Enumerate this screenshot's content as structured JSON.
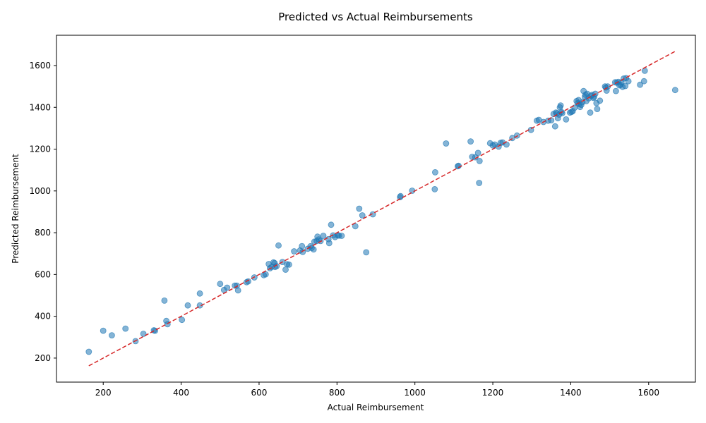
{
  "chart_data": {
    "type": "scatter",
    "title": "Predicted vs Actual Reimbursements",
    "xlabel": "Actual Reimbursement",
    "ylabel": "Predicted Reimbursement",
    "xlim": [
      80,
      1720
    ],
    "ylim": [
      85,
      1745
    ],
    "xticks": [
      200,
      400,
      600,
      800,
      1000,
      1200,
      1400,
      1600
    ],
    "yticks": [
      200,
      400,
      600,
      800,
      1000,
      1200,
      1400,
      1600
    ],
    "grid": false,
    "point_color": "#1f77b4",
    "reference_line": {
      "style": "dashed",
      "color": "#d62728",
      "from": [
        163,
        163
      ],
      "to": [
        1668,
        1668
      ]
    },
    "points": [
      [
        163,
        230
      ],
      [
        200,
        331
      ],
      [
        222,
        309
      ],
      [
        257,
        341
      ],
      [
        283,
        281
      ],
      [
        303,
        316
      ],
      [
        330,
        333
      ],
      [
        333,
        331
      ],
      [
        357,
        475
      ],
      [
        362,
        378
      ],
      [
        365,
        362
      ],
      [
        402,
        383
      ],
      [
        417,
        452
      ],
      [
        448,
        452
      ],
      [
        448,
        509
      ],
      [
        500,
        555
      ],
      [
        510,
        526
      ],
      [
        518,
        537
      ],
      [
        538,
        547
      ],
      [
        543,
        547
      ],
      [
        546,
        524
      ],
      [
        568,
        563
      ],
      [
        572,
        567
      ],
      [
        588,
        586
      ],
      [
        612,
        597
      ],
      [
        617,
        601
      ],
      [
        625,
        650
      ],
      [
        628,
        630
      ],
      [
        632,
        636
      ],
      [
        637,
        658
      ],
      [
        640,
        655
      ],
      [
        641,
        636
      ],
      [
        645,
        640
      ],
      [
        650,
        739
      ],
      [
        660,
        660
      ],
      [
        668,
        623
      ],
      [
        672,
        649
      ],
      [
        677,
        647
      ],
      [
        690,
        711
      ],
      [
        705,
        715
      ],
      [
        710,
        736
      ],
      [
        712,
        708
      ],
      [
        725,
        723
      ],
      [
        732,
        735
      ],
      [
        735,
        727
      ],
      [
        740,
        720
      ],
      [
        742,
        757
      ],
      [
        748,
        760
      ],
      [
        750,
        781
      ],
      [
        753,
        768
      ],
      [
        758,
        760
      ],
      [
        765,
        785
      ],
      [
        778,
        769
      ],
      [
        780,
        750
      ],
      [
        785,
        838
      ],
      [
        790,
        787
      ],
      [
        795,
        779
      ],
      [
        802,
        787
      ],
      [
        805,
        786
      ],
      [
        812,
        785
      ],
      [
        847,
        831
      ],
      [
        857,
        915
      ],
      [
        865,
        883
      ],
      [
        875,
        706
      ],
      [
        892,
        888
      ],
      [
        962,
        970
      ],
      [
        963,
        975
      ],
      [
        993,
        1001
      ],
      [
        1051,
        1008
      ],
      [
        1052,
        1089
      ],
      [
        1080,
        1227
      ],
      [
        1110,
        1118
      ],
      [
        1112,
        1120
      ],
      [
        1143,
        1237
      ],
      [
        1147,
        1163
      ],
      [
        1155,
        1161
      ],
      [
        1162,
        1182
      ],
      [
        1165,
        1038
      ],
      [
        1166,
        1143
      ],
      [
        1193,
        1228
      ],
      [
        1200,
        1218
      ],
      [
        1205,
        1222
      ],
      [
        1215,
        1212
      ],
      [
        1220,
        1230
      ],
      [
        1225,
        1232
      ],
      [
        1235,
        1222
      ],
      [
        1250,
        1253
      ],
      [
        1262,
        1265
      ],
      [
        1298,
        1292
      ],
      [
        1313,
        1336
      ],
      [
        1318,
        1340
      ],
      [
        1330,
        1330
      ],
      [
        1342,
        1336
      ],
      [
        1350,
        1338
      ],
      [
        1356,
        1368
      ],
      [
        1360,
        1309
      ],
      [
        1362,
        1375
      ],
      [
        1365,
        1372
      ],
      [
        1367,
        1348
      ],
      [
        1370,
        1365
      ],
      [
        1372,
        1400
      ],
      [
        1374,
        1409
      ],
      [
        1376,
        1378
      ],
      [
        1378,
        1372
      ],
      [
        1388,
        1342
      ],
      [
        1398,
        1375
      ],
      [
        1402,
        1378
      ],
      [
        1405,
        1382
      ],
      [
        1410,
        1398
      ],
      [
        1415,
        1430
      ],
      [
        1418,
        1420
      ],
      [
        1420,
        1435
      ],
      [
        1422,
        1415
      ],
      [
        1424,
        1402
      ],
      [
        1427,
        1412
      ],
      [
        1430,
        1425
      ],
      [
        1433,
        1478
      ],
      [
        1436,
        1450
      ],
      [
        1438,
        1460
      ],
      [
        1440,
        1430
      ],
      [
        1442,
        1465
      ],
      [
        1446,
        1443
      ],
      [
        1450,
        1375
      ],
      [
        1452,
        1455
      ],
      [
        1455,
        1460
      ],
      [
        1458,
        1445
      ],
      [
        1460,
        1450
      ],
      [
        1463,
        1465
      ],
      [
        1466,
        1420
      ],
      [
        1468,
        1392
      ],
      [
        1475,
        1432
      ],
      [
        1488,
        1500
      ],
      [
        1490,
        1495
      ],
      [
        1492,
        1480
      ],
      [
        1495,
        1500
      ],
      [
        1514,
        1520
      ],
      [
        1516,
        1478
      ],
      [
        1518,
        1518
      ],
      [
        1522,
        1522
      ],
      [
        1525,
        1505
      ],
      [
        1528,
        1508
      ],
      [
        1530,
        1520
      ],
      [
        1533,
        1498
      ],
      [
        1536,
        1538
      ],
      [
        1540,
        1502
      ],
      [
        1542,
        1540
      ],
      [
        1548,
        1525
      ],
      [
        1578,
        1508
      ],
      [
        1588,
        1525
      ],
      [
        1590,
        1575
      ],
      [
        1668,
        1483
      ]
    ]
  }
}
